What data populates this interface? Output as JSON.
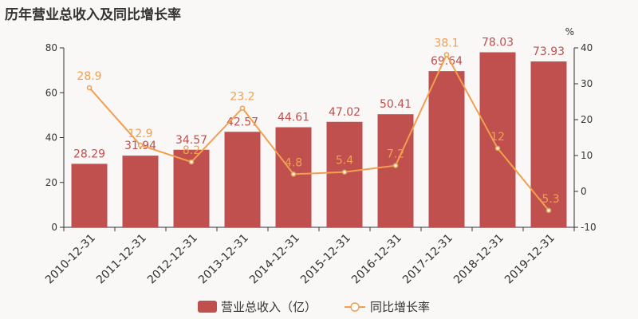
{
  "page_title": "历年营业总收入及同比增长率",
  "colors": {
    "bar": "#c0504d",
    "line": "#f0a050",
    "bar_label": "#c0504d",
    "line_label": "#f0a050"
  },
  "chart_data": {
    "type": "bar",
    "categories": [
      "2010-12-31",
      "2011-12-31",
      "2012-12-31",
      "2013-12-31",
      "2014-12-31",
      "2015-12-31",
      "2016-12-31",
      "2017-12-31",
      "2018-12-31",
      "2019-12-31"
    ],
    "series": [
      {
        "name": "营业总收入（亿）",
        "type": "bar",
        "axis": "left",
        "values": [
          28.29,
          31.94,
          34.57,
          42.57,
          44.61,
          47.02,
          50.41,
          69.64,
          78.03,
          73.93
        ]
      },
      {
        "name": "同比增长率",
        "type": "line",
        "axis": "right",
        "values": [
          28.9,
          12.9,
          8.2,
          23.2,
          4.8,
          5.4,
          7.2,
          38.1,
          12,
          -5.3
        ],
        "labels": [
          "28.9",
          "12.9",
          "8.2",
          "23.2",
          "4.8",
          "5.4",
          "7.2",
          "38.1",
          "12",
          "-5.3"
        ]
      }
    ],
    "y_left": {
      "ylim": [
        0,
        80
      ],
      "ticks": [
        0,
        20,
        40,
        60,
        80
      ]
    },
    "y_right": {
      "ylim": [
        -10,
        40
      ],
      "ticks": [
        -10,
        0,
        10,
        20,
        30,
        40
      ],
      "unit_label": "%"
    },
    "legend_position": "bottom",
    "grid": false
  }
}
